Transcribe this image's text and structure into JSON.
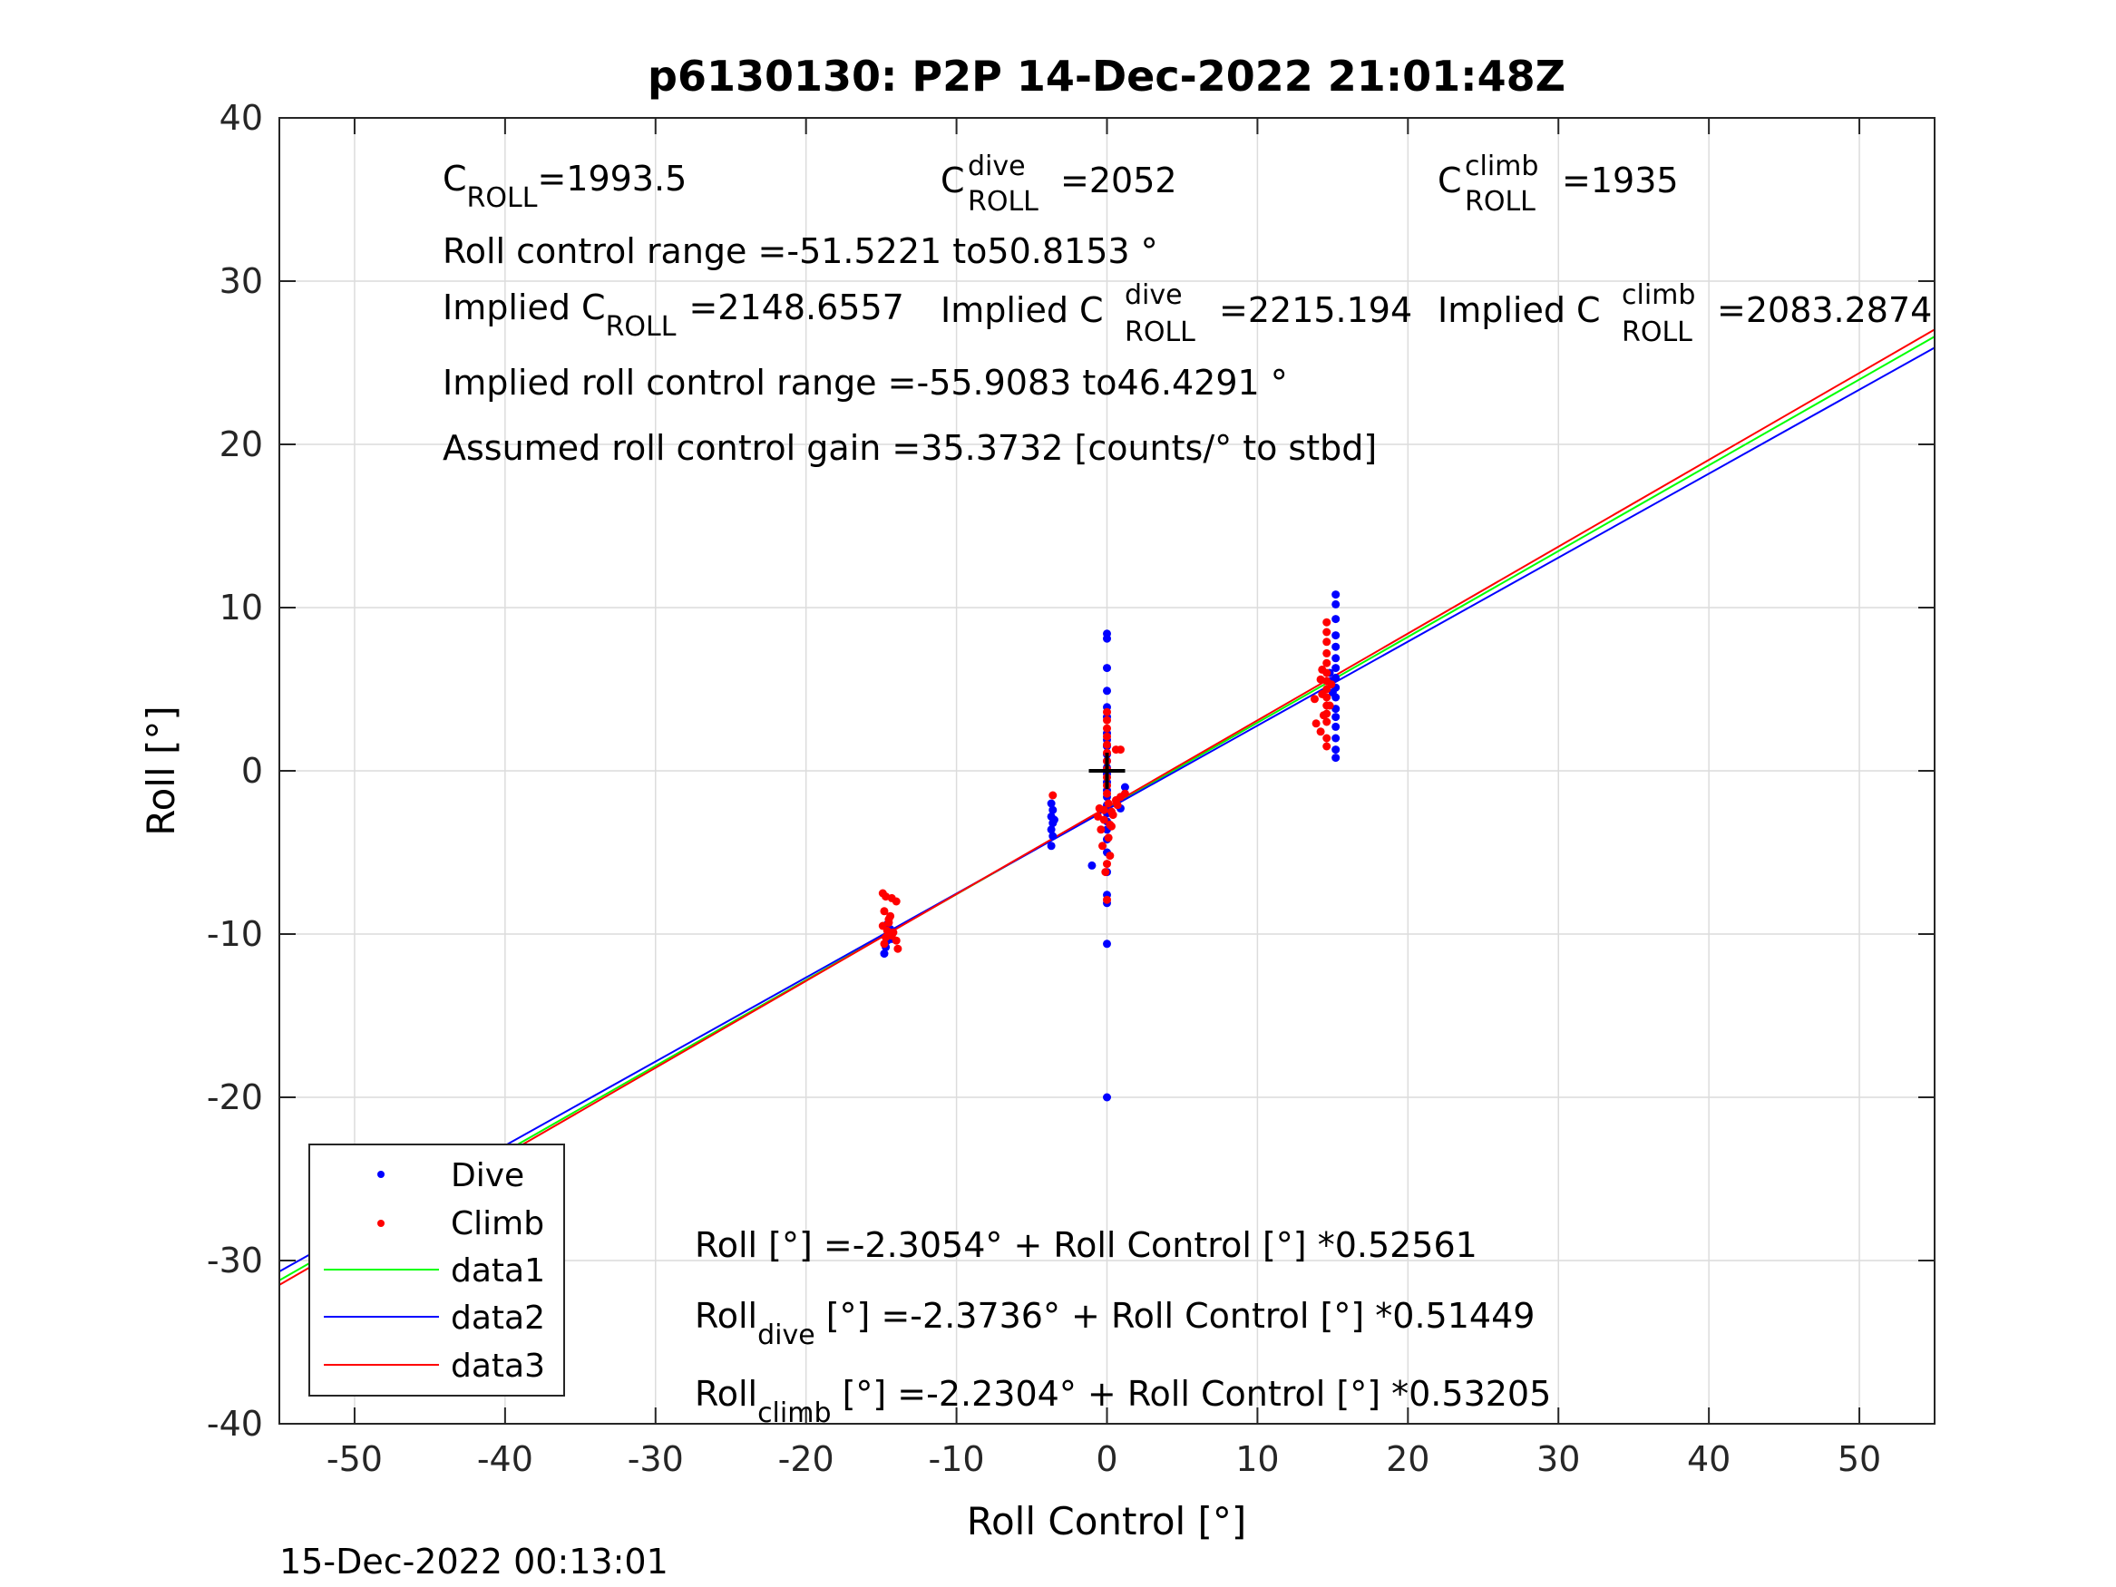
{
  "chart_data": {
    "type": "scatter",
    "title": "p6130130: P2P 14-Dec-2022 21:01:48Z",
    "xlabel": "Roll Control [°]",
    "ylabel": "Roll [°]",
    "xlim": [
      -55,
      55
    ],
    "ylim": [
      -40,
      40
    ],
    "xticks": [
      -50,
      -40,
      -30,
      -20,
      -10,
      0,
      10,
      20,
      30,
      40,
      50
    ],
    "yticks": [
      -40,
      -30,
      -20,
      -10,
      0,
      10,
      20,
      30,
      40
    ],
    "grid": true,
    "legend_position": "bottom-left",
    "footer": "15-Dec-2022 00:13:01",
    "annotations": {
      "c_roll": {
        "base": "C",
        "sub": "ROLL",
        "value": "=1993.5"
      },
      "c_roll_dive": {
        "base": "C",
        "sup": "dive",
        "sub": "ROLL",
        "value": "=2052"
      },
      "c_roll_climb": {
        "base": "C",
        "sup": "climb",
        "sub": "ROLL",
        "value": "=1935"
      },
      "roll_range": "Roll control range =-51.5221 to50.8153 °",
      "implied_c_roll": {
        "base": "Implied C",
        "sub": "ROLL",
        "value": "=2148.6557"
      },
      "implied_c_roll_dive": {
        "base": "Implied C",
        "sup": "dive",
        "sub": "ROLL",
        "value": "=2215.194"
      },
      "implied_c_roll_climb": {
        "base": "Implied C",
        "sup": "climb",
        "sub": "ROLL",
        "value": "=2083.2874"
      },
      "implied_range": "Implied roll control range =-55.9083 to46.4291 °",
      "gain": "Assumed roll control gain =35.3732 [counts/° to stbd]",
      "eq_all": "Roll [°] =-2.3054° + Roll Control [°] *0.52561",
      "eq_dive": {
        "base": "Roll",
        "sub": "dive",
        "rest": " [°] =-2.3736° + Roll Control [°] *0.51449"
      },
      "eq_climb": {
        "base": "Roll",
        "sub": "climb",
        "rest": " [°] =-2.2304° + Roll Control [°] *0.53205"
      }
    },
    "colors": {
      "dive": "#0000ff",
      "climb": "#ff0000",
      "data1": "#00ff00",
      "data2": "#0000ff",
      "data3": "#ff0000",
      "marker": "#000000"
    },
    "series": [
      {
        "name": "Dive",
        "kind": "points",
        "color": "#0000ff",
        "points": [
          [
            -14.8,
            -11.2
          ],
          [
            -14.7,
            -10.8
          ],
          [
            -14.6,
            -10.4
          ],
          [
            -14.5,
            -10.0
          ],
          [
            -14.4,
            -9.7
          ],
          [
            -14.6,
            -9.4
          ],
          [
            -14.3,
            -10.3
          ],
          [
            -3.7,
            -2.0
          ],
          [
            -3.6,
            -2.4
          ],
          [
            -3.7,
            -2.8
          ],
          [
            -3.6,
            -3.2
          ],
          [
            -3.7,
            -3.6
          ],
          [
            -3.6,
            -4.0
          ],
          [
            -3.7,
            -4.6
          ],
          [
            -3.5,
            -3.0
          ],
          [
            0.0,
            8.4
          ],
          [
            0.0,
            8.1
          ],
          [
            0.0,
            6.3
          ],
          [
            0.0,
            4.9
          ],
          [
            0.0,
            3.9
          ],
          [
            0.0,
            3.3
          ],
          [
            0.0,
            2.3
          ],
          [
            0.0,
            1.9
          ],
          [
            0.0,
            1.5
          ],
          [
            0.0,
            1.0
          ],
          [
            0.0,
            0.6
          ],
          [
            0.0,
            0.2
          ],
          [
            0.0,
            -0.2
          ],
          [
            0.0,
            -0.7
          ],
          [
            0.0,
            -1.2
          ],
          [
            0.0,
            -1.6
          ],
          [
            0.0,
            -2.1
          ],
          [
            0.0,
            -2.6
          ],
          [
            0.0,
            -3.1
          ],
          [
            0.0,
            -3.6
          ],
          [
            0.0,
            -4.2
          ],
          [
            0.0,
            -5.0
          ],
          [
            0.0,
            -6.2
          ],
          [
            0.0,
            -7.6
          ],
          [
            0.0,
            -8.1
          ],
          [
            0.0,
            -10.6
          ],
          [
            0.0,
            -20.0
          ],
          [
            -1.0,
            -5.8
          ],
          [
            0.9,
            -2.3
          ],
          [
            1.2,
            -1.0
          ],
          [
            15.2,
            10.8
          ],
          [
            15.2,
            10.2
          ],
          [
            15.2,
            9.3
          ],
          [
            15.2,
            8.3
          ],
          [
            15.2,
            7.6
          ],
          [
            15.2,
            6.9
          ],
          [
            15.2,
            6.3
          ],
          [
            15.2,
            5.7
          ],
          [
            15.2,
            5.1
          ],
          [
            15.2,
            4.5
          ],
          [
            15.2,
            3.8
          ],
          [
            15.2,
            3.3
          ],
          [
            15.2,
            2.7
          ],
          [
            15.2,
            2.0
          ],
          [
            15.2,
            1.3
          ],
          [
            15.2,
            0.8
          ],
          [
            14.9,
            5.5
          ],
          [
            15.0,
            4.8
          ],
          [
            14.8,
            6.0
          ]
        ]
      },
      {
        "name": "Climb",
        "kind": "points",
        "color": "#ff0000",
        "points": [
          [
            -14.9,
            -7.5
          ],
          [
            -14.7,
            -7.7
          ],
          [
            -14.3,
            -7.8
          ],
          [
            -14.0,
            -8.0
          ],
          [
            -14.8,
            -8.6
          ],
          [
            -14.5,
            -9.1
          ],
          [
            -14.9,
            -9.5
          ],
          [
            -14.6,
            -9.8
          ],
          [
            -14.3,
            -10.1
          ],
          [
            -14.0,
            -10.4
          ],
          [
            -14.8,
            -10.6
          ],
          [
            -14.5,
            -9.3
          ],
          [
            -14.2,
            -9.9
          ],
          [
            -14.7,
            -10.2
          ],
          [
            -13.9,
            -10.9
          ],
          [
            -14.4,
            -8.9
          ],
          [
            -3.6,
            -1.5
          ],
          [
            -0.5,
            -2.3
          ],
          [
            -0.6,
            -2.8
          ],
          [
            -0.2,
            -3.0
          ],
          [
            0.2,
            -3.3
          ],
          [
            -0.4,
            -3.6
          ],
          [
            0.1,
            -4.1
          ],
          [
            -0.3,
            -4.6
          ],
          [
            0.2,
            -5.2
          ],
          [
            0.0,
            -5.7
          ],
          [
            -0.1,
            -6.2
          ],
          [
            0.0,
            -7.9
          ],
          [
            0.1,
            -2.0
          ],
          [
            0.3,
            -2.5
          ],
          [
            0.4,
            -2.7
          ],
          [
            0.6,
            -1.8
          ],
          [
            0.9,
            -1.6
          ],
          [
            1.2,
            -1.4
          ],
          [
            0.7,
            -2.1
          ],
          [
            0.0,
            3.6
          ],
          [
            0.0,
            3.1
          ],
          [
            0.0,
            2.6
          ],
          [
            0.0,
            2.1
          ],
          [
            0.0,
            1.6
          ],
          [
            0.0,
            1.1
          ],
          [
            0.0,
            0.6
          ],
          [
            0.0,
            0.1
          ],
          [
            0.0,
            -0.4
          ],
          [
            0.0,
            -0.9
          ],
          [
            0.0,
            -1.4
          ],
          [
            0.6,
            1.3
          ],
          [
            0.9,
            1.3
          ],
          [
            -0.2,
            -2.4
          ],
          [
            0.3,
            -3.4
          ],
          [
            13.9,
            2.9
          ],
          [
            14.2,
            2.4
          ],
          [
            14.6,
            9.1
          ],
          [
            14.6,
            8.5
          ],
          [
            14.6,
            7.9
          ],
          [
            14.6,
            7.2
          ],
          [
            14.6,
            6.6
          ],
          [
            14.6,
            6.0
          ],
          [
            14.6,
            5.5
          ],
          [
            14.6,
            5.0
          ],
          [
            14.6,
            4.5
          ],
          [
            14.6,
            4.0
          ],
          [
            14.6,
            3.5
          ],
          [
            14.6,
            3.0
          ],
          [
            14.6,
            2.0
          ],
          [
            14.6,
            1.5
          ],
          [
            14.3,
            4.7
          ],
          [
            14.2,
            5.6
          ],
          [
            14.8,
            4.0
          ],
          [
            14.3,
            6.2
          ],
          [
            14.9,
            5.3
          ],
          [
            13.8,
            4.4
          ],
          [
            14.4,
            3.4
          ]
        ]
      },
      {
        "name": "data1",
        "kind": "line",
        "color": "#00ff00",
        "intercept": -2.3054,
        "slope": 0.52561,
        "x": [
          -55,
          55
        ]
      },
      {
        "name": "data2",
        "kind": "line",
        "color": "#0000ff",
        "intercept": -2.3736,
        "slope": 0.51449,
        "x": [
          -55,
          55
        ]
      },
      {
        "name": "data3",
        "kind": "line",
        "color": "#ff0000",
        "intercept": -2.2304,
        "slope": 0.53205,
        "x": [
          -55,
          55
        ]
      }
    ],
    "origin_marker": {
      "x": 0,
      "y": 0,
      "color": "#000000"
    }
  }
}
